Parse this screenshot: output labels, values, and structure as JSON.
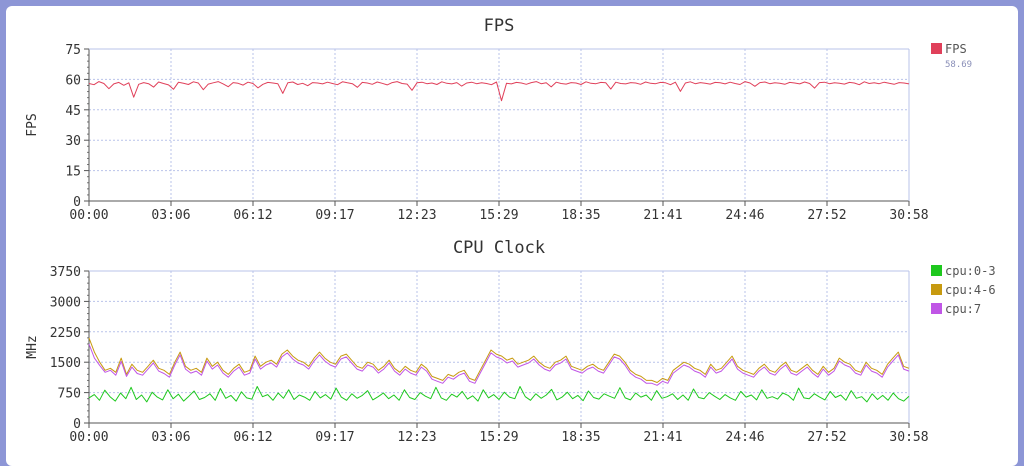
{
  "chart_data": [
    {
      "type": "line",
      "title": "FPS",
      "ylabel": "FPS",
      "xlabel": "",
      "ylim": [
        0,
        75
      ],
      "yticks": [
        "0",
        "15",
        "30",
        "45",
        "60",
        "75"
      ],
      "xticks": [
        "00:00",
        "03:06",
        "06:12",
        "09:17",
        "12:23",
        "15:29",
        "18:35",
        "21:41",
        "24:46",
        "27:52",
        "30:58"
      ],
      "grid": true,
      "legend_position": "right",
      "series": [
        {
          "name": "FPS",
          "color": "#e0405a",
          "legend_value": "58.69",
          "values": [
            58,
            57.4,
            58.9,
            58,
            55.4,
            57.8,
            58.5,
            57.1,
            58.3,
            51.2,
            57.6,
            58.4,
            57.9,
            56.2,
            58.7,
            58,
            57.3,
            55.1,
            58.6,
            58.1,
            57.5,
            58.8,
            58.2,
            54.9,
            57.7,
            58.3,
            58.9,
            57.8,
            56.4,
            58.4,
            58.1,
            57.2,
            58.6,
            58,
            55.8,
            57.6,
            58.5,
            58.2,
            57.9,
            53.1,
            58.3,
            58.7,
            57.5,
            58.1,
            56.9,
            58.4,
            58.2,
            57.8,
            58.6,
            58,
            57.4,
            58.8,
            58.3,
            57.9,
            56.1,
            58.5,
            58.2,
            57.6,
            58.7,
            58.1,
            57.3,
            58.4,
            58.9,
            58,
            57.7,
            54.6,
            58.3,
            58.6,
            57.9,
            58.2,
            57.5,
            58.8,
            58.1,
            57.8,
            58.4,
            56.7,
            58.2,
            58.6,
            57.9,
            58.3,
            58,
            57.4,
            58.7,
            49.5,
            58.1,
            57.8,
            58.5,
            58.2,
            57.6,
            58.4,
            58.9,
            57.9,
            58.3,
            56.3,
            58.6,
            58,
            57.7,
            58.4,
            58.2,
            57.5,
            58.8,
            58.1,
            57.9,
            58.5,
            58.3,
            55.2,
            58.6,
            58,
            57.8,
            58.4,
            58.2,
            57.6,
            58.7,
            58.1,
            57.9,
            58.5,
            58.3,
            57.4,
            58.6,
            54.1,
            58.2,
            58.8,
            57.9,
            58.4,
            58.1,
            57.7,
            58.5,
            58.3,
            57.8,
            58.6,
            58,
            57.5,
            58.9,
            58.2,
            56.6,
            58.4,
            58.7,
            57.9,
            58.3,
            58.1,
            57.6,
            58.5,
            58.2,
            57.8,
            58.7,
            58,
            55.7,
            58.4,
            58.6,
            57.9,
            58.3,
            58.1,
            57.7,
            58.5,
            58.2,
            57.4,
            58.8,
            58,
            58.3,
            57.9,
            58.6,
            58.1,
            57.6,
            58.4,
            58.2,
            57.8
          ]
        }
      ]
    },
    {
      "type": "line",
      "title": "CPU Clock",
      "ylabel": "MHz",
      "xlabel": "",
      "ylim": [
        0,
        3750
      ],
      "yticks": [
        "0",
        "750",
        "1500",
        "2250",
        "3000",
        "3750"
      ],
      "xticks": [
        "00:00",
        "03:06",
        "06:12",
        "09:17",
        "12:23",
        "15:29",
        "18:35",
        "21:41",
        "24:46",
        "27:52",
        "30:58"
      ],
      "grid": true,
      "legend_position": "right",
      "series": [
        {
          "name": "cpu:0-3",
          "color": "#1ec81e",
          "values": [
            620,
            700,
            560,
            810,
            650,
            540,
            740,
            600,
            880,
            580,
            690,
            520,
            760,
            640,
            570,
            820,
            600,
            710,
            540,
            660,
            790,
            580,
            630,
            720,
            560,
            850,
            610,
            680,
            540,
            770,
            620,
            590,
            900,
            650,
            700,
            560,
            740,
            610,
            820,
            580,
            690,
            640,
            560,
            780,
            620,
            700,
            590,
            860,
            640,
            560,
            720,
            610,
            680,
            800,
            570,
            650,
            740,
            600,
            690,
            560,
            820,
            630,
            580,
            750,
            660,
            600,
            880,
            620,
            560,
            710,
            640,
            780,
            590,
            670,
            540,
            820,
            620,
            700,
            580,
            760,
            640,
            600,
            900,
            650,
            560,
            720,
            610,
            690,
            830,
            570,
            640,
            760,
            600,
            680,
            550,
            790,
            630,
            590,
            720,
            660,
            610,
            870,
            620,
            570,
            740,
            640,
            690,
            560,
            800,
            610,
            650,
            720,
            580,
            690,
            560,
            840,
            630,
            600,
            750,
            660,
            580,
            700,
            620,
            560,
            780,
            640,
            690,
            570,
            820,
            610,
            650,
            590,
            740,
            680,
            560,
            860,
            620,
            600,
            720,
            640,
            570,
            780,
            630,
            690,
            560,
            800,
            610,
            650,
            520,
            720,
            580,
            680,
            560,
            740,
            600,
            540,
            660
          ]
        },
        {
          "name": "cpu:4-6",
          "color": "#c79a10",
          "values": [
            2100,
            1750,
            1500,
            1300,
            1350,
            1250,
            1600,
            1200,
            1450,
            1300,
            1250,
            1400,
            1550,
            1350,
            1300,
            1200,
            1500,
            1750,
            1400,
            1300,
            1350,
            1250,
            1600,
            1400,
            1500,
            1300,
            1200,
            1350,
            1450,
            1250,
            1300,
            1650,
            1400,
            1500,
            1550,
            1450,
            1700,
            1800,
            1650,
            1550,
            1500,
            1400,
            1600,
            1750,
            1600,
            1500,
            1450,
            1650,
            1700,
            1550,
            1400,
            1350,
            1500,
            1450,
            1300,
            1400,
            1550,
            1350,
            1250,
            1400,
            1300,
            1250,
            1450,
            1350,
            1150,
            1100,
            1050,
            1200,
            1150,
            1250,
            1300,
            1100,
            1050,
            1300,
            1550,
            1800,
            1700,
            1650,
            1550,
            1600,
            1450,
            1500,
            1550,
            1650,
            1500,
            1400,
            1350,
            1500,
            1550,
            1650,
            1400,
            1350,
            1300,
            1400,
            1450,
            1350,
            1300,
            1500,
            1700,
            1650,
            1500,
            1300,
            1200,
            1150,
            1050,
            1050,
            1000,
            1100,
            1050,
            1300,
            1400,
            1500,
            1450,
            1350,
            1300,
            1200,
            1450,
            1300,
            1350,
            1500,
            1650,
            1400,
            1300,
            1250,
            1200,
            1350,
            1450,
            1300,
            1250,
            1400,
            1500,
            1300,
            1250,
            1350,
            1450,
            1300,
            1200,
            1400,
            1250,
            1350,
            1600,
            1500,
            1450,
            1300,
            1250,
            1500,
            1350,
            1300,
            1200,
            1450,
            1600,
            1750,
            1400,
            1350
          ]
        },
        {
          "name": "cpu:7",
          "color": "#c056e6",
          "values": [
            1950,
            1600,
            1420,
            1250,
            1300,
            1180,
            1520,
            1150,
            1380,
            1220,
            1180,
            1330,
            1480,
            1280,
            1220,
            1130,
            1430,
            1680,
            1330,
            1230,
            1280,
            1180,
            1530,
            1330,
            1430,
            1230,
            1130,
            1280,
            1380,
            1180,
            1230,
            1580,
            1330,
            1430,
            1480,
            1380,
            1630,
            1730,
            1580,
            1480,
            1430,
            1330,
            1530,
            1680,
            1530,
            1430,
            1380,
            1580,
            1630,
            1480,
            1330,
            1280,
            1430,
            1380,
            1230,
            1330,
            1480,
            1280,
            1180,
            1330,
            1230,
            1180,
            1380,
            1280,
            1080,
            1030,
            980,
            1130,
            1080,
            1180,
            1230,
            1030,
            980,
            1230,
            1480,
            1730,
            1630,
            1580,
            1480,
            1530,
            1380,
            1430,
            1480,
            1580,
            1430,
            1330,
            1280,
            1430,
            1480,
            1580,
            1330,
            1280,
            1230,
            1330,
            1380,
            1280,
            1230,
            1430,
            1630,
            1580,
            1430,
            1230,
            1130,
            1080,
            980,
            980,
            930,
            1030,
            980,
            1230,
            1330,
            1430,
            1380,
            1280,
            1230,
            1130,
            1380,
            1230,
            1280,
            1430,
            1580,
            1330,
            1230,
            1180,
            1130,
            1280,
            1380,
            1230,
            1180,
            1330,
            1430,
            1230,
            1180,
            1280,
            1380,
            1230,
            1130,
            1330,
            1180,
            1280,
            1530,
            1430,
            1380,
            1230,
            1180,
            1430,
            1280,
            1230,
            1130,
            1380,
            1530,
            1680,
            1330,
            1280
          ]
        }
      ]
    }
  ]
}
